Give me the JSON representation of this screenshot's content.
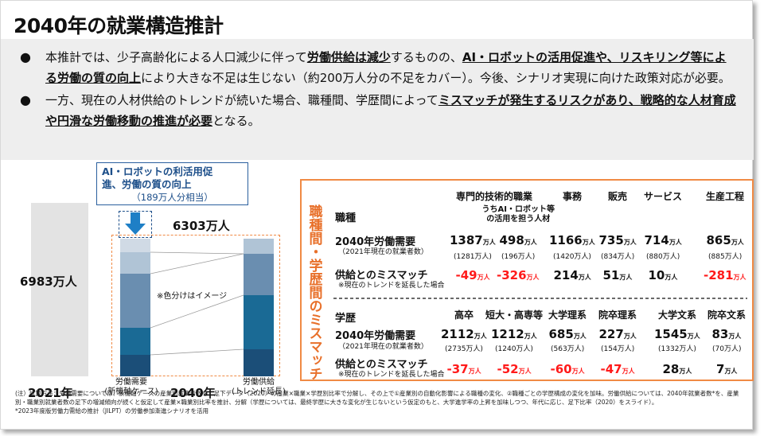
{
  "title": "2040年の就業構造推計",
  "bullets": [
    {
      "parts": [
        {
          "t": "本推計では、少子高齢化による人口減少に伴って",
          "b": false
        },
        {
          "t": "労働供給は減少",
          "b": true
        },
        {
          "t": "するものの、",
          "b": false
        },
        {
          "t": "AI・ロボットの活用促進や、リスキリング等による労働の質の向上",
          "b": true
        },
        {
          "t": "により大きな不足は生じない（約200万人分の不足をカバー）。今後、シナリオ実現に向けた政策対応が必要。",
          "b": false
        }
      ]
    },
    {
      "parts": [
        {
          "t": "一方、現在の人材供給のトレンドが続いた場合、職種間、学歴間によって",
          "b": false
        },
        {
          "t": "ミスマッチが発生するリスクがあり、戦略的な人材育成や円滑な労働移動の推進が必要",
          "b": true
        },
        {
          "t": "となる。",
          "b": false
        }
      ]
    }
  ],
  "left_chart": {
    "value_2021": "6983万人",
    "value_2040": "6303万人",
    "label_2021": "2021年",
    "label_2040": "2040年",
    "bar1_label": "労働需要\n(新機軸ケース)",
    "bar2_label": "労働供給\n(トレンド延長)",
    "image_note": "※色分けはイメージ",
    "callout_line1": "AI・ロボットの利活用促",
    "callout_line2": "進、労働の質の向上",
    "callout_sub": "（189万人分相当）"
  },
  "mismatch": {
    "vertical_label": "職種間・学歴間のミスマッチ",
    "occupation": {
      "section": "職種",
      "headers": [
        "専門的技術的職業",
        "うちAI・ロボット等\nの活用を担う人材",
        "事務",
        "販売",
        "サービス",
        "生産工程"
      ],
      "demand_label": "2040年労働需要",
      "demand_sub": "（2021年現在の就業者数）",
      "demand": [
        "1387",
        "498",
        "1166",
        "735",
        "714",
        "865"
      ],
      "current": [
        "(1281万人)",
        "(196万人)",
        "(1420万人)",
        "(834万人)",
        "(880万人)",
        "(885万人)"
      ],
      "gap_label": "供給とのミスマッチ",
      "gap_sub": "※現在のトレンドを延長した場合",
      "gap": [
        "-49",
        "-326",
        "214",
        "51",
        "10",
        "-281"
      ]
    },
    "education": {
      "section": "学歴",
      "headers": [
        "高卒",
        "短大・高専等",
        "大学理系",
        "院卒理系",
        "大学文系",
        "院卒文系"
      ],
      "demand_label": "2040年労働需要",
      "demand_sub": "（2021年現在の就業者数）",
      "demand": [
        "2112",
        "1212",
        "685",
        "227",
        "1545",
        "83"
      ],
      "current": [
        "(2735万人)",
        "(1240万人)",
        "(563万人)",
        "(154万人)",
        "(1332万人)",
        "(70万人)"
      ],
      "gap_label": "供給とのミスマッチ",
      "gap_sub": "※現在のトレンドを延長した場合",
      "gap": [
        "-37",
        "-52",
        "-60",
        "-47",
        "28",
        "7"
      ]
    },
    "unit": "万人"
  },
  "footnote": [
    "(注）試算方法：労働需要については、新機軸ケースの産業別就業者数を、足下データ（2020）の産業×職業×学歴別比率で分解し、その上で①産業別の自動化影響による職種の変化、②職種ごとの学歴構成の変化を加味。労働供給については、2040年就業者数*を、産業別・職業別就業者数の足下の増減傾向が続くと仮定して産業×職業別比率を推計、分解（学歴については、最終学歴に大きな変化が生じないという仮定のもと、大学進学率の上昇を加味しつつ、年代に応じ、足下比率（2020）をスライド）。",
    "*2023年度版労働力需給の推計（JILPT）の労働参加漸進シナリオを活用"
  ]
}
